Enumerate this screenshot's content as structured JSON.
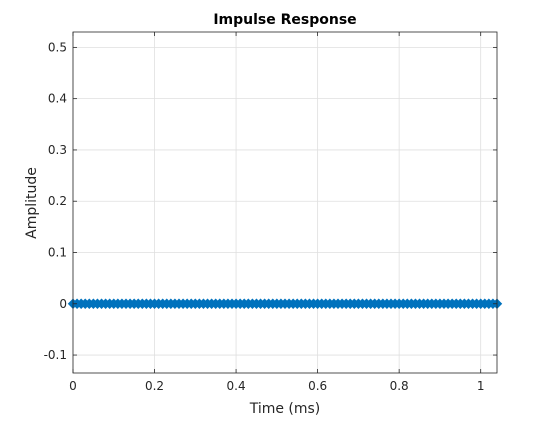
{
  "chart_data": {
    "type": "stem",
    "title": "Impulse Response",
    "xlabel": "Time (ms)",
    "ylabel": "Amplitude",
    "xlim": [
      0,
      1.04
    ],
    "ylim": [
      -0.135,
      0.53
    ],
    "xticks": [
      0,
      0.2,
      0.4,
      0.6,
      0.8,
      1
    ],
    "xtick_labels": [
      "0",
      "0.2",
      "0.4",
      "0.6",
      "0.8",
      "1"
    ],
    "yticks": [
      -0.1,
      0,
      0.1,
      0.2,
      0.3,
      0.4,
      0.5
    ],
    "ytick_labels": [
      "-0.1",
      "0",
      "0.1",
      "0.2",
      "0.3",
      "0.4",
      "0.5"
    ],
    "grid": true,
    "series_color": "#0072BD",
    "x": [
      0.0,
      0.01,
      0.02,
      0.03,
      0.04,
      0.05,
      0.06,
      0.07,
      0.08,
      0.09,
      0.1,
      0.11,
      0.12,
      0.13,
      0.14,
      0.15,
      0.16,
      0.17,
      0.18,
      0.19,
      0.2,
      0.21,
      0.22,
      0.23,
      0.24,
      0.25,
      0.26,
      0.27,
      0.28,
      0.29,
      0.3,
      0.31,
      0.32,
      0.33,
      0.34,
      0.35,
      0.36,
      0.37,
      0.38,
      0.39,
      0.4,
      0.41,
      0.42,
      0.43,
      0.44,
      0.45,
      0.46,
      0.47,
      0.48,
      0.49,
      0.5,
      0.51,
      0.52,
      0.53,
      0.54,
      0.55,
      0.56,
      0.57,
      0.58,
      0.59,
      0.6,
      0.61,
      0.62,
      0.63,
      0.64,
      0.65,
      0.66,
      0.67,
      0.68,
      0.69,
      0.7,
      0.71,
      0.72,
      0.73,
      0.74,
      0.75,
      0.76,
      0.77,
      0.78,
      0.79,
      0.8,
      0.81,
      0.82,
      0.83,
      0.84,
      0.85,
      0.86,
      0.87,
      0.88,
      0.89,
      0.9,
      0.91,
      0.92,
      0.93,
      0.94,
      0.95,
      0.96,
      0.97,
      0.98,
      0.99,
      1.0,
      1.01,
      1.02,
      1.03,
      1.04
    ],
    "values": [
      0.0,
      0.0,
      0.0,
      0.0,
      0.0,
      0.0,
      0.0,
      0.0,
      0.0,
      0.0,
      0.0,
      0.0,
      0.0,
      0.0,
      0.0,
      0.0,
      0.0,
      0.0,
      0.0,
      0.0,
      0.0,
      0.0,
      0.0,
      0.0,
      0.0,
      0.0,
      0.0,
      0.0,
      0.0,
      0.0,
      0.0,
      0.0,
      0.0,
      0.0,
      0.0,
      0.0,
      0.0,
      0.0,
      0.0,
      0.0,
      0.0,
      0.0,
      0.0,
      0.0,
      0.0,
      0.0,
      0.0,
      0.0,
      0.0,
      0.0,
      0.0,
      0.0,
      0.0,
      0.0,
      0.0,
      0.0,
      0.0,
      0.0,
      0.0,
      0.0,
      0.0,
      0.0,
      0.0,
      0.0,
      0.0,
      0.0,
      0.0,
      0.0,
      0.0,
      0.0,
      0.0,
      0.0,
      0.0,
      0.0,
      0.0,
      0.0,
      0.0,
      0.0,
      0.0,
      0.0,
      0.0,
      0.0,
      0.0,
      0.0,
      0.0,
      0.0,
      0.0,
      0.0,
      0.0,
      0.0,
      0.0,
      0.0,
      0.0,
      0.0,
      0.0,
      0.0,
      0.0,
      0.0,
      0.0,
      0.0,
      0.0,
      0.0,
      0.0,
      0.0,
      0.0
    ]
  }
}
